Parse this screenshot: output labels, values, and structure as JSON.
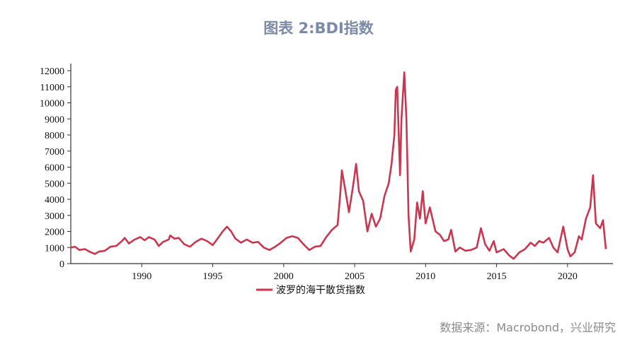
{
  "chart_data": {
    "type": "line",
    "title": "图表 2:BDI指数",
    "xlabel": "",
    "ylabel": "",
    "ylim": [
      0,
      12000
    ],
    "xlim": [
      1985,
      2023.2
    ],
    "yticks": [
      0,
      1000,
      2000,
      3000,
      4000,
      5000,
      6000,
      7000,
      8000,
      9000,
      10000,
      11000,
      12000
    ],
    "xticks": [
      1990,
      1995,
      2000,
      2005,
      2010,
      2015,
      2020
    ],
    "grid": false,
    "legend_position": "bottom-center",
    "line_color": "#c8374f",
    "series": [
      {
        "name": "波罗的海干散货指数",
        "x": [
          1985.0,
          1985.3,
          1985.6,
          1986.0,
          1986.3,
          1986.7,
          1987.0,
          1987.4,
          1987.8,
          1988.2,
          1988.6,
          1988.8,
          1989.1,
          1989.5,
          1989.9,
          1990.2,
          1990.5,
          1990.9,
          1991.2,
          1991.5,
          1991.9,
          1992.0,
          1992.3,
          1992.6,
          1993.0,
          1993.4,
          1993.8,
          1994.2,
          1994.6,
          1995.0,
          1995.3,
          1995.7,
          1996.0,
          1996.3,
          1996.6,
          1997.0,
          1997.4,
          1997.8,
          1998.2,
          1998.6,
          1999.0,
          1999.4,
          1999.8,
          2000.2,
          2000.6,
          2001.0,
          2001.4,
          2001.8,
          2002.2,
          2002.6,
          2003.0,
          2003.4,
          2003.8,
          2004.0,
          2004.1,
          2004.3,
          2004.6,
          2004.8,
          2005.0,
          2005.1,
          2005.3,
          2005.6,
          2005.9,
          2006.2,
          2006.5,
          2006.8,
          2007.1,
          2007.4,
          2007.6,
          2007.8,
          2007.9,
          2008.0,
          2008.2,
          2008.3,
          2008.5,
          2008.65,
          2008.8,
          2008.95,
          2009.2,
          2009.4,
          2009.6,
          2009.8,
          2010.0,
          2010.3,
          2010.7,
          2011.0,
          2011.3,
          2011.6,
          2011.8,
          2012.1,
          2012.4,
          2012.8,
          2013.2,
          2013.6,
          2013.9,
          2014.2,
          2014.5,
          2014.8,
          2015.0,
          2015.5,
          2015.9,
          2016.2,
          2016.6,
          2017.0,
          2017.4,
          2017.7,
          2018.0,
          2018.3,
          2018.7,
          2019.0,
          2019.3,
          2019.7,
          2020.0,
          2020.2,
          2020.5,
          2020.8,
          2021.0,
          2021.3,
          2021.6,
          2021.8,
          2022.0,
          2022.3,
          2022.5,
          2022.6,
          2022.7
        ],
        "values": [
          1000,
          1050,
          850,
          900,
          750,
          600,
          750,
          800,
          1050,
          1100,
          1400,
          1600,
          1250,
          1500,
          1650,
          1450,
          1650,
          1500,
          1100,
          1350,
          1500,
          1750,
          1550,
          1600,
          1200,
          1050,
          1350,
          1550,
          1400,
          1150,
          1500,
          2000,
          2300,
          2000,
          1550,
          1300,
          1500,
          1300,
          1350,
          1000,
          850,
          1050,
          1300,
          1600,
          1700,
          1600,
          1200,
          850,
          1050,
          1100,
          1650,
          2100,
          2400,
          4500,
          5800,
          4800,
          3200,
          4300,
          5500,
          6200,
          4500,
          3900,
          2000,
          3100,
          2300,
          2800,
          4200,
          5000,
          6200,
          8000,
          10800,
          11000,
          5500,
          9000,
          11900,
          9000,
          3000,
          750,
          1500,
          3800,
          2800,
          4500,
          2500,
          3500,
          2000,
          1800,
          1400,
          1500,
          2100,
          750,
          1000,
          800,
          850,
          1000,
          2200,
          1200,
          800,
          1400,
          700,
          900,
          500,
          300,
          700,
          900,
          1300,
          1100,
          1400,
          1300,
          1600,
          1000,
          700,
          2300,
          900,
          450,
          700,
          1700,
          1500,
          2800,
          3500,
          5500,
          2500,
          2200,
          2700,
          1800,
          900
        ]
      }
    ]
  },
  "source": "数据来源：Macrobond，兴业研究"
}
